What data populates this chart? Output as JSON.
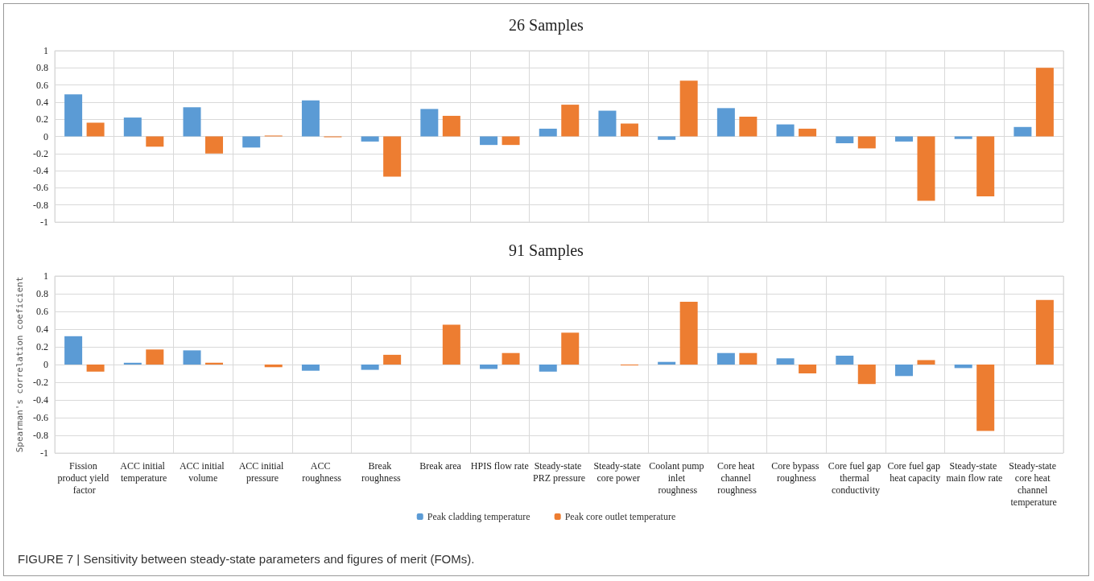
{
  "chart_data": [
    {
      "type": "bar",
      "title": "26 Samples",
      "categories": [
        "Fission product yield factor",
        "ACC initial temperature",
        "ACC initial volume",
        "ACC initial pressure",
        "ACC roughness",
        "Break roughness",
        "Break area",
        "HPIS flow rate",
        "Steady-state PRZ pressure",
        "Steady-state core power",
        "Coolant pump inlet roughness",
        "Core heat channel roughness",
        "Core bypass roughness",
        "Core fuel gap thermal conductivity",
        "Core fuel gap heat capacity",
        "Steady-state main flow rate",
        "Steady-state core heat channel temperature"
      ],
      "series": [
        {
          "color": "#5b9bd5",
          "values": [
            0.49,
            0.22,
            0.34,
            -0.13,
            0.42,
            -0.06,
            0.32,
            -0.1,
            0.09,
            0.3,
            -0.04,
            0.33,
            0.14,
            -0.08,
            -0.06,
            -0.03,
            0.11
          ]
        },
        {
          "color": "#ed7d31",
          "values": [
            0.16,
            -0.12,
            -0.2,
            0.01,
            -0.01,
            -0.47,
            0.24,
            -0.1,
            0.37,
            0.15,
            0.65,
            0.23,
            0.09,
            -0.14,
            -0.75,
            -0.7,
            0.8
          ]
        }
      ],
      "ylim": [
        -1,
        1
      ],
      "yticks": [
        -1,
        -0.8,
        -0.6,
        -0.4,
        -0.2,
        0,
        0.2,
        0.4,
        0.6,
        0.8,
        1
      ],
      "grid": true,
      "tick_labels": "y"
    },
    {
      "type": "bar",
      "title": "91 Samples",
      "ylabel": "Spearman's correlation coeficient",
      "categories": [
        "Fission product yield factor",
        "ACC initial temperature",
        "ACC initial volume",
        "ACC initial pressure",
        "ACC roughness",
        "Break roughness",
        "Break area",
        "HPIS flow rate",
        "Steady-state PRZ pressure",
        "Steady-state core power",
        "Coolant pump inlet roughness",
        "Core heat channel roughness",
        "Core bypass roughness",
        "Core fuel gap thermal conductivity",
        "Core fuel gap heat capacity",
        "Steady-state main flow rate",
        "Steady-state core heat channel temperature"
      ],
      "series": [
        {
          "name": "Peak cladding temperature",
          "color": "#5b9bd5",
          "values": [
            0.32,
            0.02,
            0.16,
            0,
            -0.07,
            -0.06,
            0,
            -0.05,
            -0.08,
            0,
            0.03,
            0.13,
            0.07,
            0.1,
            -0.13,
            -0.04,
            0
          ]
        },
        {
          "name": "Peak core outlet temperature",
          "color": "#ed7d31",
          "values": [
            -0.08,
            0.17,
            0.02,
            -0.03,
            0,
            0.11,
            0.45,
            0.13,
            0.36,
            -0.01,
            0.71,
            0.13,
            -0.1,
            -0.22,
            0.05,
            -0.75,
            0.73
          ]
        }
      ],
      "ylim": [
        -1,
        1
      ],
      "yticks": [
        -1,
        -0.8,
        -0.6,
        -0.4,
        -0.2,
        0,
        0.2,
        0.4,
        0.6,
        0.8,
        1
      ],
      "grid": true,
      "legend": "bottom",
      "annotations": [
        "FIGURE 7 | Sensitivity between steady-state parameters and figures of merit (FOMs)."
      ]
    }
  ]
}
